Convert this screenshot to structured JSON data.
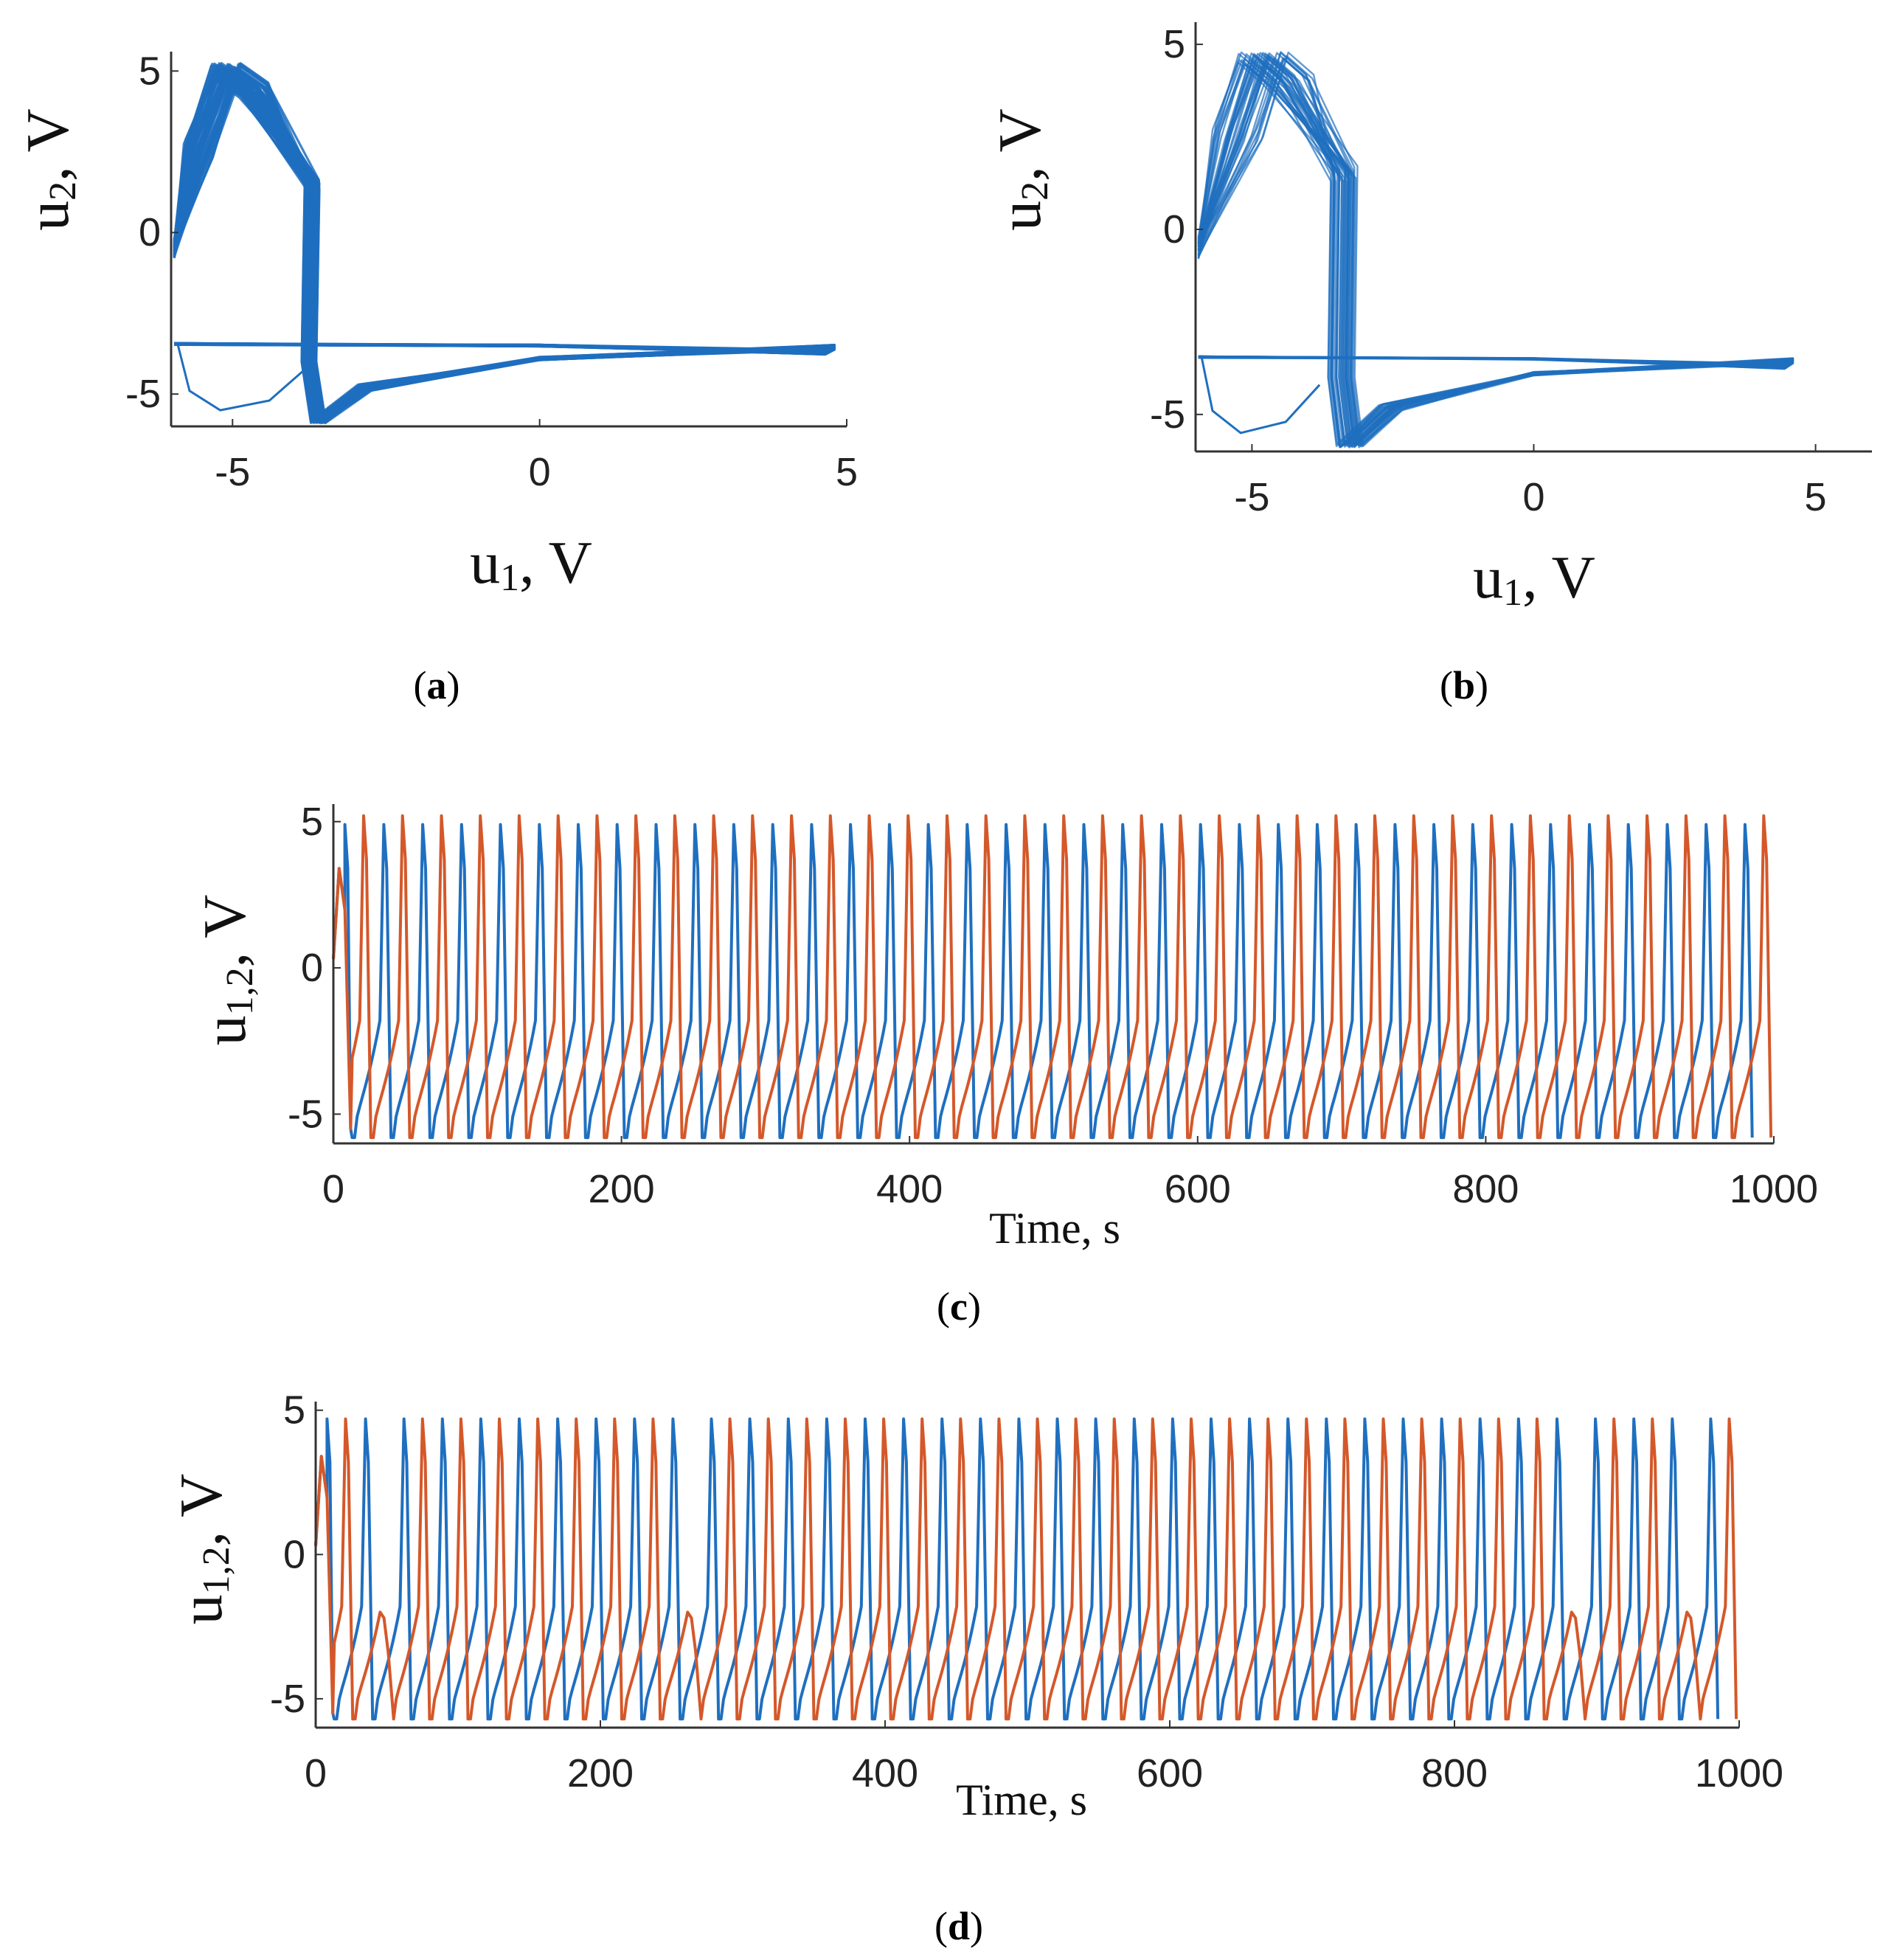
{
  "colors": {
    "u1": "#1f6fbf",
    "u2": "#d4582a",
    "phase": "#1f6fbf",
    "axis": "#333333"
  },
  "chart_data": [
    {
      "id": "a",
      "type": "scatter",
      "caption": {
        "open": "(",
        "letter": "a",
        "close": ")"
      },
      "xlabel": {
        "main": "u",
        "sub": "1",
        "unit": ", V"
      },
      "ylabel": {
        "main": "u",
        "sub": "2",
        "unit": ", V"
      },
      "xlim": [
        -6,
        5
      ],
      "ylim": [
        -6,
        5.6
      ],
      "xticks": [
        "-5",
        "0",
        "5"
      ],
      "yticks": [
        "5",
        "0",
        "-5"
      ],
      "xtick_values": [
        -5,
        0,
        5
      ],
      "ytick_values": [
        5,
        0,
        -5
      ],
      "series": [
        {
          "name": "phase portrait u2 vs u1",
          "style": "dense"
        }
      ]
    },
    {
      "id": "b",
      "type": "scatter",
      "caption": {
        "open": "(",
        "letter": "b",
        "close": ")"
      },
      "xlabel": {
        "main": "u",
        "sub": "1",
        "unit": ", V"
      },
      "ylabel": {
        "main": "u",
        "sub": "2",
        "unit": ", V"
      },
      "xlim": [
        -6,
        6
      ],
      "ylim": [
        -6,
        5.6
      ],
      "xticks": [
        "-5",
        "0",
        "5"
      ],
      "yticks": [
        "5",
        "0",
        "-5"
      ],
      "xtick_values": [
        -5,
        0,
        5
      ],
      "ytick_values": [
        5,
        0,
        -5
      ],
      "series": [
        {
          "name": "phase portrait u2 vs u1",
          "style": "sparse"
        }
      ]
    },
    {
      "id": "c",
      "type": "line",
      "caption": {
        "open": "(",
        "letter": "c",
        "close": ")"
      },
      "xlabel": {
        "main": "Time, s"
      },
      "ylabel": {
        "main": "u",
        "sub": "1,2",
        "unit": ", V"
      },
      "xlim": [
        0,
        1000
      ],
      "ylim": [
        -6,
        5.6
      ],
      "xticks": [
        "0",
        "200",
        "400",
        "600",
        "800",
        "1000"
      ],
      "xtick_values": [
        0,
        200,
        400,
        600,
        800,
        1000
      ],
      "yticks": [
        "5",
        "0",
        "-5"
      ],
      "ytick_values": [
        5,
        0,
        -5
      ],
      "series": [
        {
          "name": "u1",
          "color_key": "u1",
          "peak": 4.9,
          "trough": -5.8,
          "period": 27,
          "offset": 8
        },
        {
          "name": "u2",
          "color_key": "u2",
          "peak": 5.2,
          "trough": -5.8,
          "period": 27,
          "offset": 21
        }
      ]
    },
    {
      "id": "d",
      "type": "line",
      "caption": {
        "open": "(",
        "letter": "d",
        "close": ")"
      },
      "xlabel": {
        "main": "Time, s"
      },
      "ylabel": {
        "main": "u",
        "sub": "1,2",
        "unit": ", V"
      },
      "xlim": [
        0,
        1000
      ],
      "ylim": [
        -6,
        5.3
      ],
      "xticks": [
        "0",
        "200",
        "400",
        "600",
        "800",
        "1000"
      ],
      "xtick_values": [
        0,
        200,
        400,
        600,
        800,
        1000
      ],
      "yticks": [
        "5",
        "0",
        "-5"
      ],
      "ytick_values": [
        5,
        0,
        -5
      ],
      "series": [
        {
          "name": "u1",
          "color_key": "u1",
          "peak": 4.7,
          "trough": -5.7,
          "period": 27,
          "offset": 8
        },
        {
          "name": "u2",
          "color_key": "u2",
          "peak": 4.7,
          "trough": -5.7,
          "period": 27,
          "offset": 21,
          "missed_spike_times": [
            40,
            258,
            875,
            960
          ]
        }
      ]
    }
  ]
}
